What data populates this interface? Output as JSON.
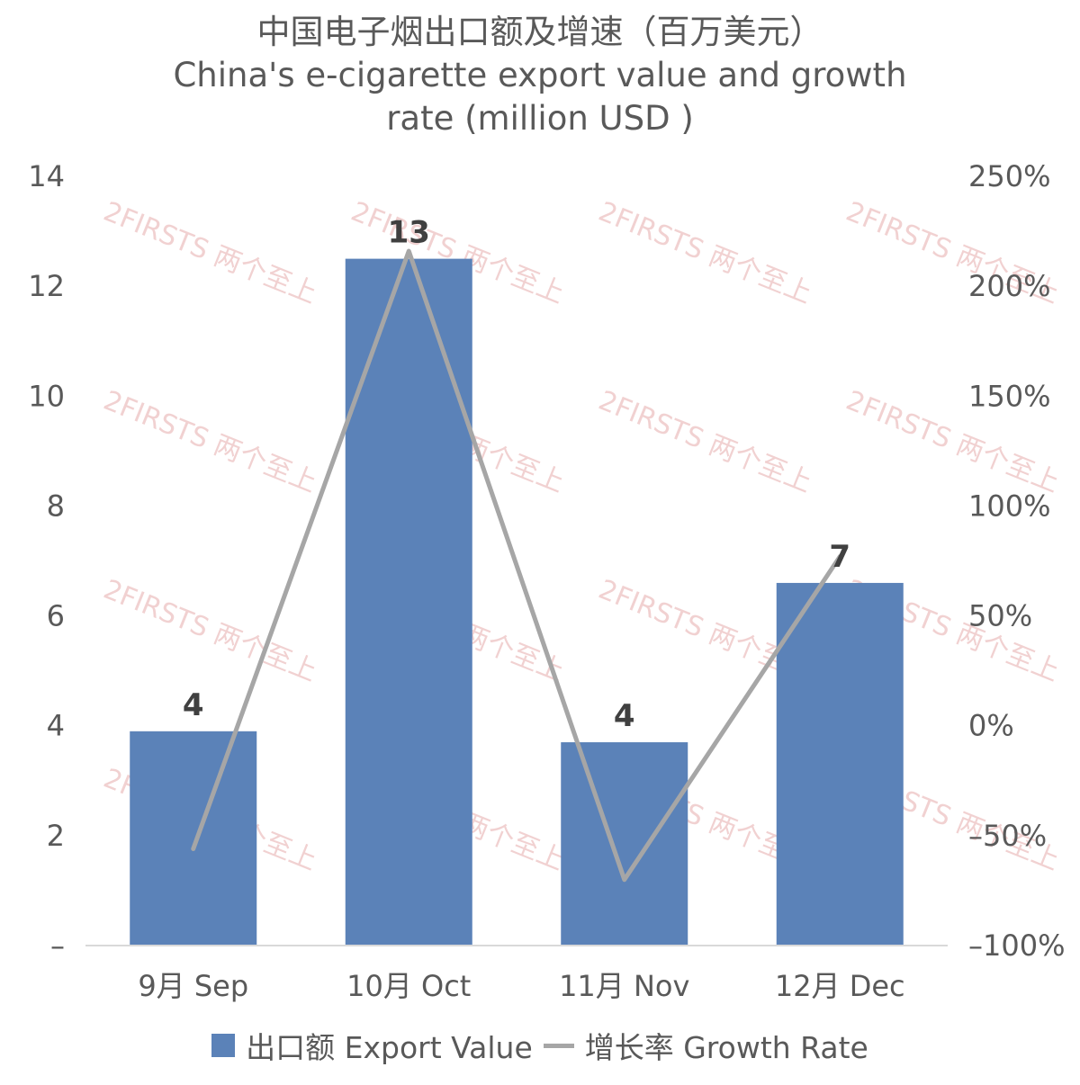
{
  "chart_data": {
    "type": "bar",
    "title": "中国电子烟出口额及增速（百万美元）",
    "subtitle_lines": [
      "China's e-cigarette export value and growth",
      "rate (million USD )"
    ],
    "categories": [
      "9月 Sep",
      "10月 Oct",
      "11月 Nov",
      "12月 Dec"
    ],
    "series": [
      {
        "name": "出口额 Export Value",
        "type": "bar",
        "axis": "left",
        "values": [
          3.9,
          12.5,
          3.7,
          6.6
        ],
        "data_labels": [
          "4",
          "13",
          "4",
          "7"
        ]
      },
      {
        "name": "增长率 Growth Rate",
        "type": "line",
        "axis": "right",
        "values": [
          -56,
          216,
          -70,
          77
        ]
      }
    ],
    "y_left": {
      "ylim": [
        0,
        14
      ],
      "ticks": [
        0,
        2,
        4,
        6,
        8,
        10,
        12,
        14
      ],
      "tick_labels": [
        "–",
        "2",
        "4",
        "6",
        "8",
        "10",
        "12",
        "14"
      ]
    },
    "y_right": {
      "ylim": [
        -100,
        250
      ],
      "ticks": [
        -100,
        -50,
        0,
        50,
        100,
        150,
        200,
        250
      ],
      "tick_labels": [
        "–100%",
        "–50%",
        "0%",
        "50%",
        "100%",
        "150%",
        "200%",
        "250%"
      ]
    },
    "grid": false,
    "legend_position": "bottom",
    "colors": {
      "bar": "#5b82b8",
      "line": "#a6a6a6"
    },
    "watermark": "2FIRSTS 两个至上"
  }
}
